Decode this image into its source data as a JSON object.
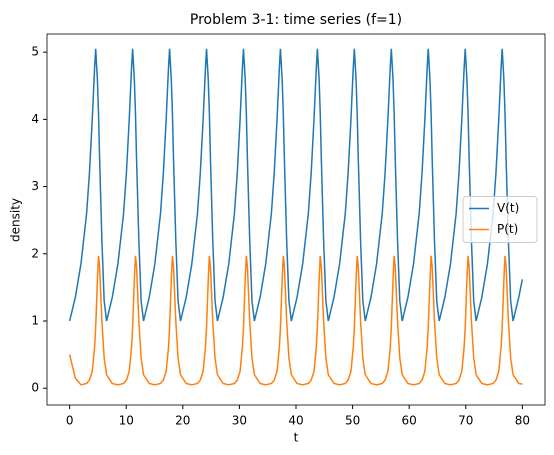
{
  "chart_data": {
    "type": "line",
    "title": "Problem 3-1: time series (f=1)",
    "xlabel": "t",
    "ylabel": "density",
    "x": [
      0,
      1,
      2,
      3,
      3.5,
      4,
      4.4,
      4.6,
      4.9,
      5.1,
      5.3,
      5.7,
      6.1,
      6.53,
      7.53,
      8.53,
      9.53,
      10.03,
      10.53,
      10.93,
      11.13,
      11.43,
      11.63,
      11.83,
      12.23,
      12.63,
      13.06,
      14.06,
      15.06,
      16.06,
      16.56,
      17.06,
      17.46,
      17.66,
      17.96,
      18.16,
      18.36,
      18.76,
      19.16,
      19.59,
      20.59,
      21.59,
      22.59,
      23.09,
      23.59,
      23.99,
      24.19,
      24.49,
      24.69,
      24.89,
      25.29,
      25.69,
      26.12,
      27.12,
      28.12,
      29.12,
      29.62,
      30.12,
      30.52,
      30.72,
      31.02,
      31.22,
      31.42,
      31.82,
      32.22,
      32.65,
      33.65,
      34.65,
      35.65,
      36.15,
      36.65,
      37.05,
      37.25,
      37.55,
      37.75,
      37.95,
      38.35,
      38.75,
      39.18,
      40.18,
      41.18,
      42.18,
      42.68,
      43.18,
      43.58,
      43.78,
      44.08,
      44.28,
      44.48,
      44.88,
      45.28,
      45.71,
      46.71,
      47.71,
      48.71,
      49.21,
      49.71,
      50.11,
      50.31,
      50.61,
      50.81,
      51.01,
      51.41,
      51.81,
      52.24,
      53.24,
      54.24,
      55.24,
      55.74,
      56.24,
      56.64,
      56.84,
      57.14,
      57.34,
      57.54,
      57.94,
      58.34,
      58.77,
      59.77,
      60.77,
      61.77,
      62.27,
      62.77,
      63.17,
      63.37,
      63.67,
      63.87,
      64.07,
      64.47,
      64.87,
      65.3,
      66.3,
      67.3,
      68.3,
      68.8,
      69.3,
      69.7,
      69.9,
      70.2,
      70.4,
      70.6,
      71,
      71.4,
      71.83,
      72.83,
      73.83,
      74.83,
      75.33,
      75.83,
      76.23,
      76.43,
      76.73,
      76.93,
      77.13,
      77.53,
      77.93,
      78.36,
      79.36,
      80
    ],
    "series": [
      {
        "name": "V(t)",
        "color": "#1f77b4",
        "values": [
          1.0,
          1.35,
          1.85,
          2.6,
          3.2,
          4.0,
          4.75,
          5.05,
          4.6,
          4.1,
          3.4,
          2.2,
          1.3,
          1.0,
          1.35,
          1.85,
          2.6,
          3.2,
          4.0,
          4.75,
          5.05,
          4.6,
          4.1,
          3.4,
          2.2,
          1.3,
          1.0,
          1.35,
          1.85,
          2.6,
          3.2,
          4.0,
          4.75,
          5.05,
          4.6,
          4.1,
          3.4,
          2.2,
          1.3,
          1.0,
          1.35,
          1.85,
          2.6,
          3.2,
          4.0,
          4.75,
          5.05,
          4.6,
          4.1,
          3.4,
          2.2,
          1.3,
          1.0,
          1.35,
          1.85,
          2.6,
          3.2,
          4.0,
          4.75,
          5.05,
          4.6,
          4.1,
          3.4,
          2.2,
          1.3,
          1.0,
          1.35,
          1.85,
          2.6,
          3.2,
          4.0,
          4.75,
          5.05,
          4.6,
          4.1,
          3.4,
          2.2,
          1.3,
          1.0,
          1.35,
          1.85,
          2.6,
          3.2,
          4.0,
          4.75,
          5.05,
          4.6,
          4.1,
          3.4,
          2.2,
          1.3,
          1.0,
          1.35,
          1.85,
          2.6,
          3.2,
          4.0,
          4.75,
          5.05,
          4.6,
          4.1,
          3.4,
          2.2,
          1.3,
          1.0,
          1.35,
          1.85,
          2.6,
          3.2,
          4.0,
          4.75,
          5.05,
          4.6,
          4.1,
          3.4,
          2.2,
          1.3,
          1.0,
          1.35,
          1.85,
          2.6,
          3.2,
          4.0,
          4.75,
          5.05,
          4.6,
          4.1,
          3.4,
          2.2,
          1.3,
          1.0,
          1.35,
          1.85,
          2.6,
          3.2,
          4.0,
          4.75,
          5.05,
          4.6,
          4.1,
          3.4,
          2.2,
          1.3,
          1.0,
          1.35,
          1.85,
          2.6,
          3.2,
          4.0,
          4.75,
          5.05,
          4.6,
          4.1,
          3.4,
          2.2,
          1.3,
          1.0,
          1.35,
          1.62
        ]
      },
      {
        "name": "P(t)",
        "color": "#ff7f0e",
        "values": [
          0.5,
          0.15,
          0.05,
          0.07,
          0.12,
          0.25,
          0.6,
          0.9,
          1.6,
          1.97,
          1.8,
          1.0,
          0.45,
          0.2,
          0.07,
          0.05,
          0.07,
          0.12,
          0.25,
          0.6,
          0.9,
          1.6,
          1.97,
          1.8,
          1.0,
          0.45,
          0.2,
          0.07,
          0.05,
          0.07,
          0.12,
          0.25,
          0.6,
          0.9,
          1.6,
          1.97,
          1.8,
          1.0,
          0.45,
          0.2,
          0.07,
          0.05,
          0.07,
          0.12,
          0.25,
          0.6,
          0.9,
          1.6,
          1.97,
          1.8,
          1.0,
          0.45,
          0.2,
          0.07,
          0.05,
          0.07,
          0.12,
          0.25,
          0.6,
          0.9,
          1.6,
          1.97,
          1.8,
          1.0,
          0.45,
          0.2,
          0.07,
          0.05,
          0.07,
          0.12,
          0.25,
          0.6,
          0.9,
          1.6,
          1.97,
          1.8,
          1.0,
          0.45,
          0.2,
          0.07,
          0.05,
          0.07,
          0.12,
          0.25,
          0.6,
          0.9,
          1.6,
          1.97,
          1.8,
          1.0,
          0.45,
          0.2,
          0.07,
          0.05,
          0.07,
          0.12,
          0.25,
          0.6,
          0.9,
          1.6,
          1.97,
          1.8,
          1.0,
          0.45,
          0.2,
          0.07,
          0.05,
          0.07,
          0.12,
          0.25,
          0.6,
          0.9,
          1.6,
          1.97,
          1.8,
          1.0,
          0.45,
          0.2,
          0.07,
          0.05,
          0.07,
          0.12,
          0.25,
          0.6,
          0.9,
          1.6,
          1.97,
          1.8,
          1.0,
          0.45,
          0.2,
          0.07,
          0.05,
          0.07,
          0.12,
          0.25,
          0.6,
          0.9,
          1.6,
          1.97,
          1.8,
          1.0,
          0.45,
          0.2,
          0.07,
          0.05,
          0.07,
          0.12,
          0.25,
          0.6,
          0.9,
          1.6,
          1.97,
          1.8,
          1.0,
          0.45,
          0.2,
          0.07,
          0.06
        ]
      }
    ],
    "xlim": [
      -4,
      84
    ],
    "ylim": [
      -0.25,
      5.27
    ],
    "xticks": [
      0,
      10,
      20,
      30,
      40,
      50,
      60,
      70,
      80
    ],
    "yticks": [
      0,
      1,
      2,
      3,
      4,
      5
    ],
    "legend": "center right",
    "grid": false
  }
}
